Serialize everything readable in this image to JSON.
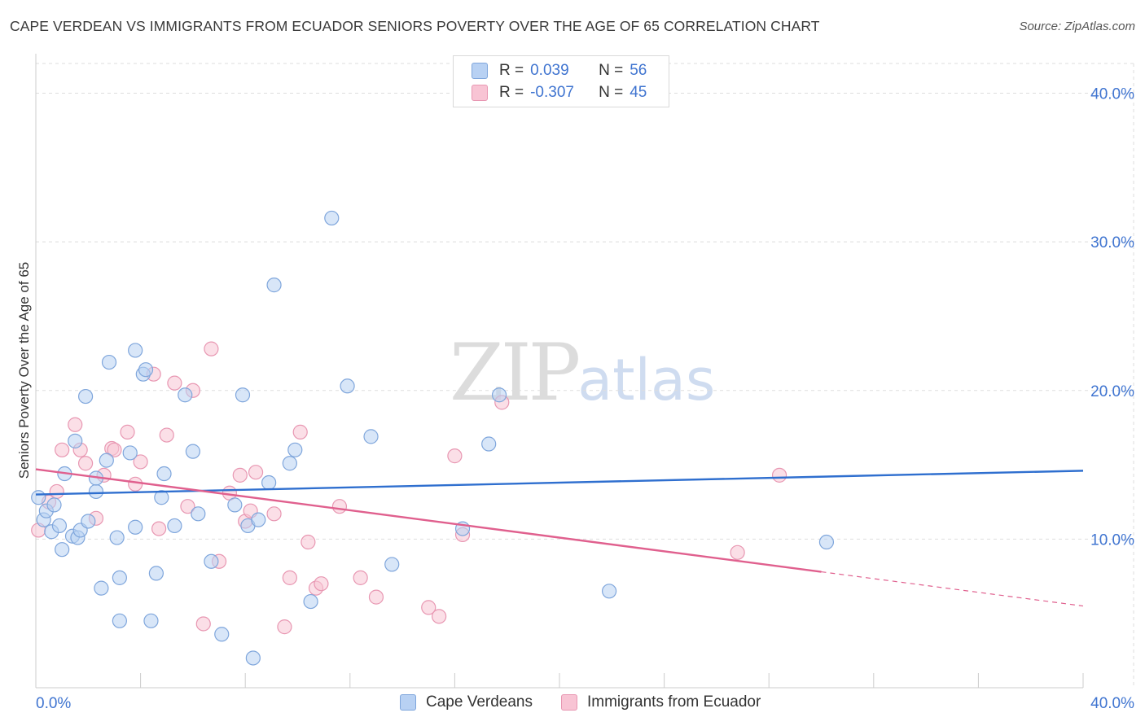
{
  "header": {
    "title": "CAPE VERDEAN VS IMMIGRANTS FROM ECUADOR SENIORS POVERTY OVER THE AGE OF 65 CORRELATION CHART",
    "source": "Source: ZipAtlas.com"
  },
  "watermark": {
    "zip": "ZIP",
    "atlas": "atlas"
  },
  "legend": {
    "rows": [
      {
        "r_label": "R =",
        "r_value": "0.039",
        "n_label": "N =",
        "n_value": "56"
      },
      {
        "r_label": "R =",
        "r_value": "-0.307",
        "n_label": "N =",
        "n_value": "45"
      }
    ]
  },
  "bottom_legend": {
    "series1": "Cape Verdeans",
    "series2": "Immigrants from Ecuador"
  },
  "colors": {
    "series1_fill": "#b8d1f3",
    "series1_stroke": "#7fa6dc",
    "series1_line": "#2f6fcf",
    "series2_fill": "#f8c4d4",
    "series2_stroke": "#e897b2",
    "series2_line": "#e0608e",
    "tick_label": "#3f74d0",
    "grid": "#dddddd"
  },
  "chart_data": {
    "type": "scatter",
    "title": "CAPE VERDEAN VS IMMIGRANTS FROM ECUADOR SENIORS POVERTY OVER THE AGE OF 65 CORRELATION CHART",
    "xlabel": "",
    "ylabel": "Seniors Poverty Over the Age of 65",
    "xlim": [
      0,
      40
    ],
    "ylim": [
      0,
      42
    ],
    "x_tick_labels": [
      "0.0%",
      "40.0%"
    ],
    "x_ticks": [
      0,
      40
    ],
    "y_ticks": [
      10,
      20,
      30,
      40
    ],
    "y_tick_labels": [
      "10.0%",
      "20.0%",
      "30.0%",
      "40.0%"
    ],
    "grid": true,
    "series": [
      {
        "name": "Cape Verdeans",
        "points": [
          [
            0.1,
            12.8
          ],
          [
            0.3,
            11.3
          ],
          [
            0.4,
            11.9
          ],
          [
            0.6,
            10.5
          ],
          [
            0.7,
            12.3
          ],
          [
            0.9,
            10.9
          ],
          [
            1.0,
            9.3
          ],
          [
            1.1,
            14.4
          ],
          [
            1.4,
            10.2
          ],
          [
            1.5,
            16.6
          ],
          [
            1.6,
            10.1
          ],
          [
            1.7,
            10.6
          ],
          [
            1.9,
            19.6
          ],
          [
            2.0,
            11.2
          ],
          [
            2.3,
            13.2
          ],
          [
            2.3,
            14.1
          ],
          [
            2.5,
            6.7
          ],
          [
            2.7,
            15.3
          ],
          [
            2.8,
            21.9
          ],
          [
            3.1,
            10.1
          ],
          [
            3.2,
            4.5
          ],
          [
            3.2,
            7.4
          ],
          [
            3.6,
            15.8
          ],
          [
            3.8,
            22.7
          ],
          [
            3.8,
            10.8
          ],
          [
            4.1,
            21.1
          ],
          [
            4.2,
            21.4
          ],
          [
            4.4,
            4.5
          ],
          [
            4.6,
            7.7
          ],
          [
            4.8,
            12.8
          ],
          [
            4.9,
            14.4
          ],
          [
            5.3,
            10.9
          ],
          [
            5.7,
            19.7
          ],
          [
            6.0,
            15.9
          ],
          [
            6.2,
            11.7
          ],
          [
            6.7,
            8.5
          ],
          [
            7.1,
            3.6
          ],
          [
            7.6,
            12.3
          ],
          [
            7.9,
            19.7
          ],
          [
            8.1,
            10.9
          ],
          [
            8.3,
            2.0
          ],
          [
            8.5,
            11.3
          ],
          [
            8.9,
            13.8
          ],
          [
            9.1,
            27.1
          ],
          [
            9.7,
            15.1
          ],
          [
            9.9,
            16.0
          ],
          [
            10.5,
            5.8
          ],
          [
            11.3,
            31.6
          ],
          [
            11.9,
            20.3
          ],
          [
            12.8,
            16.9
          ],
          [
            13.6,
            8.3
          ],
          [
            16.3,
            10.7
          ],
          [
            17.3,
            16.4
          ],
          [
            17.7,
            19.7
          ],
          [
            21.9,
            6.5
          ],
          [
            30.2,
            9.8
          ]
        ]
      },
      {
        "name": "Immigrants from Ecuador",
        "points": [
          [
            0.1,
            10.6
          ],
          [
            0.5,
            12.5
          ],
          [
            0.8,
            13.2
          ],
          [
            1.0,
            16.0
          ],
          [
            1.5,
            17.7
          ],
          [
            1.7,
            16.0
          ],
          [
            1.9,
            15.1
          ],
          [
            2.3,
            11.4
          ],
          [
            2.6,
            14.3
          ],
          [
            2.9,
            16.1
          ],
          [
            3.0,
            16.0
          ],
          [
            3.5,
            17.2
          ],
          [
            3.8,
            13.7
          ],
          [
            4.0,
            15.2
          ],
          [
            4.5,
            21.1
          ],
          [
            4.7,
            10.7
          ],
          [
            5.0,
            17.0
          ],
          [
            5.3,
            20.5
          ],
          [
            5.8,
            12.2
          ],
          [
            6.0,
            20.0
          ],
          [
            6.4,
            4.3
          ],
          [
            6.7,
            22.8
          ],
          [
            7.0,
            8.5
          ],
          [
            7.4,
            13.1
          ],
          [
            7.8,
            14.3
          ],
          [
            8.0,
            11.2
          ],
          [
            8.2,
            11.9
          ],
          [
            8.4,
            14.5
          ],
          [
            9.1,
            11.7
          ],
          [
            9.5,
            4.1
          ],
          [
            9.7,
            7.4
          ],
          [
            10.1,
            17.2
          ],
          [
            10.4,
            9.8
          ],
          [
            10.7,
            6.7
          ],
          [
            10.9,
            7.0
          ],
          [
            11.6,
            12.2
          ],
          [
            12.4,
            7.4
          ],
          [
            13.0,
            6.1
          ],
          [
            15.0,
            5.4
          ],
          [
            15.4,
            4.8
          ],
          [
            16.0,
            15.6
          ],
          [
            16.3,
            10.3
          ],
          [
            17.8,
            19.2
          ],
          [
            26.8,
            9.1
          ],
          [
            28.4,
            14.3
          ]
        ]
      }
    ],
    "trend_lines": [
      {
        "name": "Cape Verdeans",
        "x": [
          0,
          40
        ],
        "y": [
          13.0,
          14.6
        ]
      },
      {
        "name": "Immigrants from Ecuador",
        "x": [
          0,
          30.0
        ],
        "y": [
          14.7,
          7.8
        ],
        "dashed_extension": {
          "x": [
            30.0,
            40
          ],
          "y": [
            7.8,
            5.5
          ]
        }
      }
    ]
  }
}
